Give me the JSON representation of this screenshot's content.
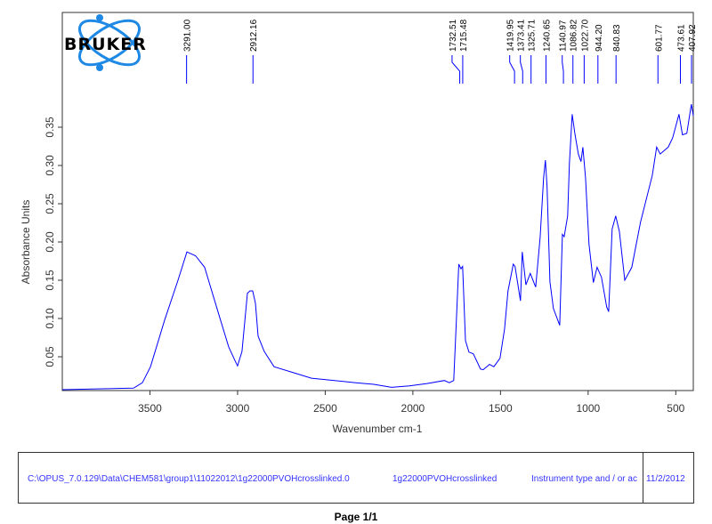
{
  "chart_data": {
    "type": "line",
    "title": "",
    "xlabel": "Wavenumber cm-1",
    "ylabel": "Absorbance Units",
    "xlim": [
      4000,
      400
    ],
    "ylim": [
      0.006,
      0.5
    ],
    "x_reversed": true,
    "grid": false,
    "x_ticks": [
      3500,
      3000,
      2500,
      2000,
      1500,
      1000,
      500
    ],
    "y_ticks": [
      0.05,
      0.1,
      0.15,
      0.2,
      0.25,
      0.3,
      0.35
    ],
    "series_color": "#0000ff",
    "peak_labels": [
      "3291.00",
      "2912.16",
      "1732.51",
      "1715.48",
      "1419.95",
      "1373.41",
      "1325.71",
      "1240.65",
      "1140.97",
      "1086.82",
      "1022.70",
      "944.20",
      "840.83",
      "601.77",
      "473.61",
      "407.92"
    ],
    "points": [
      [
        4000,
        0.007
      ],
      [
        3800,
        0.008
      ],
      [
        3594,
        0.009
      ],
      [
        3543,
        0.016
      ],
      [
        3497,
        0.037
      ],
      [
        3416,
        0.098
      ],
      [
        3340,
        0.15
      ],
      [
        3289,
        0.187
      ],
      [
        3240,
        0.182
      ],
      [
        3188,
        0.167
      ],
      [
        3112,
        0.109
      ],
      [
        3051,
        0.063
      ],
      [
        3015,
        0.045
      ],
      [
        3000,
        0.038
      ],
      [
        2975,
        0.057
      ],
      [
        2944,
        0.133
      ],
      [
        2929,
        0.136
      ],
      [
        2914,
        0.136
      ],
      [
        2898,
        0.12
      ],
      [
        2883,
        0.077
      ],
      [
        2848,
        0.057
      ],
      [
        2792,
        0.037
      ],
      [
        2665,
        0.028
      ],
      [
        2579,
        0.022
      ],
      [
        2325,
        0.016
      ],
      [
        2223,
        0.014
      ],
      [
        2122,
        0.01
      ],
      [
        2020,
        0.012
      ],
      [
        1919,
        0.015
      ],
      [
        1820,
        0.019
      ],
      [
        1792,
        0.016
      ],
      [
        1767,
        0.019
      ],
      [
        1756,
        0.074
      ],
      [
        1738,
        0.171
      ],
      [
        1726,
        0.165
      ],
      [
        1716,
        0.168
      ],
      [
        1700,
        0.071
      ],
      [
        1680,
        0.056
      ],
      [
        1655,
        0.054
      ],
      [
        1614,
        0.034
      ],
      [
        1599,
        0.033
      ],
      [
        1563,
        0.04
      ],
      [
        1538,
        0.037
      ],
      [
        1503,
        0.048
      ],
      [
        1477,
        0.086
      ],
      [
        1457,
        0.136
      ],
      [
        1427,
        0.171
      ],
      [
        1417,
        0.168
      ],
      [
        1386,
        0.123
      ],
      [
        1376,
        0.187
      ],
      [
        1355,
        0.144
      ],
      [
        1330,
        0.159
      ],
      [
        1299,
        0.141
      ],
      [
        1274,
        0.206
      ],
      [
        1254,
        0.284
      ],
      [
        1244,
        0.307
      ],
      [
        1234,
        0.272
      ],
      [
        1218,
        0.148
      ],
      [
        1198,
        0.113
      ],
      [
        1162,
        0.091
      ],
      [
        1147,
        0.21
      ],
      [
        1137,
        0.207
      ],
      [
        1117,
        0.234
      ],
      [
        1107,
        0.303
      ],
      [
        1091,
        0.367
      ],
      [
        1076,
        0.342
      ],
      [
        1056,
        0.315
      ],
      [
        1041,
        0.305
      ],
      [
        1030,
        0.324
      ],
      [
        1015,
        0.284
      ],
      [
        995,
        0.197
      ],
      [
        970,
        0.147
      ],
      [
        949,
        0.167
      ],
      [
        924,
        0.154
      ],
      [
        894,
        0.115
      ],
      [
        883,
        0.109
      ],
      [
        863,
        0.217
      ],
      [
        843,
        0.234
      ],
      [
        822,
        0.214
      ],
      [
        791,
        0.15
      ],
      [
        751,
        0.167
      ],
      [
        701,
        0.226
      ],
      [
        634,
        0.287
      ],
      [
        609,
        0.324
      ],
      [
        589,
        0.315
      ],
      [
        543,
        0.324
      ],
      [
        518,
        0.336
      ],
      [
        482,
        0.367
      ],
      [
        462,
        0.34
      ],
      [
        437,
        0.342
      ],
      [
        411,
        0.38
      ],
      [
        400,
        0.365
      ]
    ]
  },
  "logo": {
    "text": "BRUKER",
    "color": "#1e88e5"
  },
  "footer": {
    "path": "C:\\OPUS_7.0.129\\Data\\CHEM581\\group1\\11022012\\1g22000PVOHcrosslinked.0",
    "sample": "1g22000PVOHcrosslinked",
    "instrument": "Instrument type and / or ac",
    "date": "11/2/2012"
  },
  "page": "Page 1/1"
}
